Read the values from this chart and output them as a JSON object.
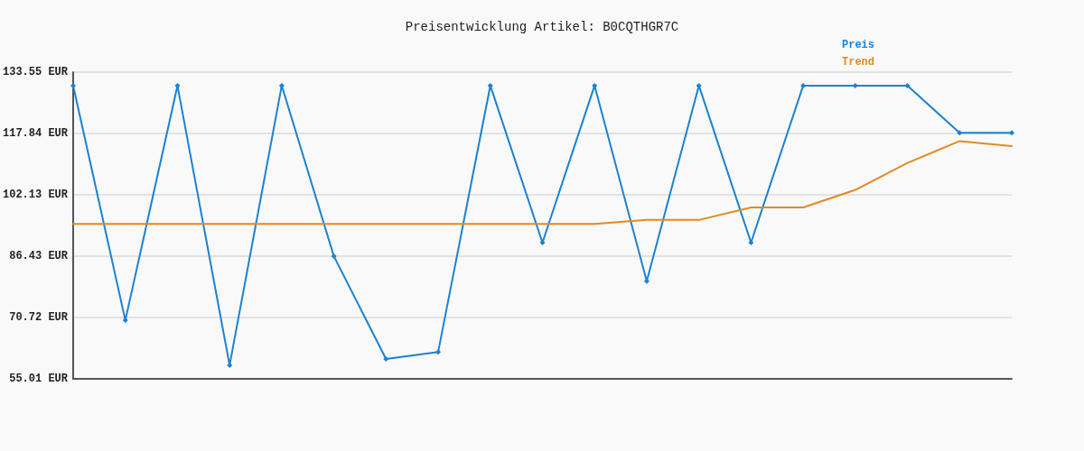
{
  "chart_data": {
    "type": "line",
    "title": "Preisentwicklung Artikel: B0CQTHGR7C",
    "categories": [
      null,
      null,
      null,
      null,
      null,
      null,
      null,
      null,
      null,
      null,
      null,
      null,
      null,
      null,
      null,
      null,
      null,
      null,
      null
    ],
    "series": [
      {
        "name": "Preis",
        "color": "#1b82d1",
        "marker": "diamond",
        "values": [
          130.1,
          70.0,
          130.1,
          58.5,
          130.1,
          86.4,
          60.1,
          61.9,
          130.1,
          89.9,
          130.1,
          80.0,
          130.1,
          89.9,
          130.1,
          130.1,
          130.1,
          118.0,
          118.0
        ]
      },
      {
        "name": "Trend",
        "color": "#e3891f",
        "marker": "none",
        "values": [
          94.7,
          94.7,
          94.7,
          94.7,
          94.7,
          94.7,
          94.7,
          94.7,
          94.7,
          94.7,
          94.7,
          95.7,
          95.7,
          98.9,
          98.9,
          103.4,
          110.3,
          115.9,
          114.6
        ]
      }
    ],
    "ylim": [
      55.01,
      133.55
    ],
    "yticks": [
      {
        "value": 55.01,
        "label": "55.01 EUR"
      },
      {
        "value": 70.72,
        "label": "70.72 EUR"
      },
      {
        "value": 86.43,
        "label": "86.43 EUR"
      },
      {
        "value": 102.13,
        "label": "102.13 EUR"
      },
      {
        "value": 117.84,
        "label": "117.84 EUR"
      },
      {
        "value": 133.55,
        "label": "133.55 EUR"
      }
    ],
    "grid": "y",
    "legend": "top right",
    "tick_labels": "y",
    "line_style": "solid"
  }
}
